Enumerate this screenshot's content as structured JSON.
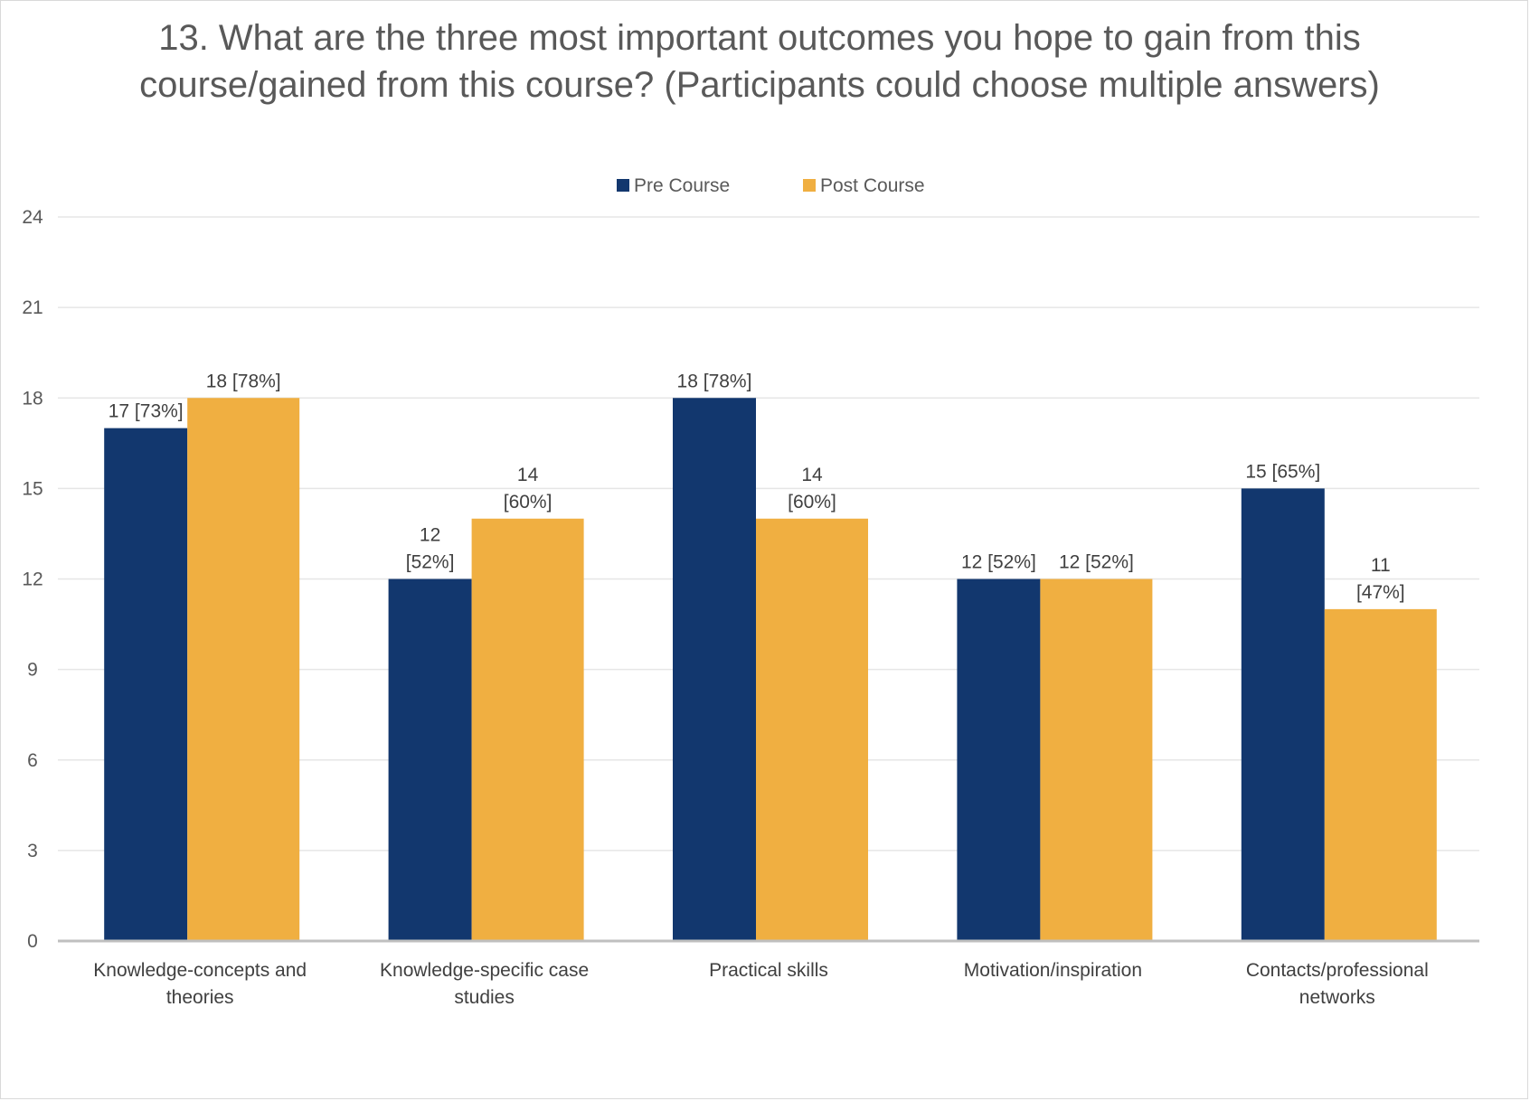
{
  "chart_data": {
    "type": "bar",
    "title": "13. What are the three most important outcomes you hope to gain from this course/gained from this course? (Participants could choose multiple answers)",
    "xlabel": "",
    "ylabel": "",
    "ylim": [
      0,
      24
    ],
    "yticks": [
      0,
      3,
      6,
      9,
      12,
      15,
      18,
      21,
      24
    ],
    "grid": true,
    "legend": "top-center",
    "categories": [
      [
        "Knowledge-concepts and",
        "theories"
      ],
      [
        "Knowledge-specific case",
        "studies"
      ],
      [
        "Practical skills"
      ],
      [
        "Motivation/inspiration"
      ],
      [
        "Contacts/professional",
        "networks"
      ]
    ],
    "series": [
      {
        "name": "Pre Course",
        "color": "#12376e",
        "values": [
          17,
          12,
          18,
          12,
          15
        ],
        "labels": [
          [
            "17 [73%]"
          ],
          [
            "12",
            "[52%]"
          ],
          [
            "18 [78%]"
          ],
          [
            "12 [52%]"
          ],
          [
            "15 [65%]"
          ]
        ]
      },
      {
        "name": "Post Course",
        "color": "#f0af41",
        "values": [
          18,
          14,
          14,
          12,
          11
        ],
        "labels": [
          [
            "18 [78%]"
          ],
          [
            "14",
            "[60%]"
          ],
          [
            "14",
            "[60%]"
          ],
          [
            "12 [52%]"
          ],
          [
            "11",
            "[47%]"
          ]
        ]
      }
    ]
  }
}
